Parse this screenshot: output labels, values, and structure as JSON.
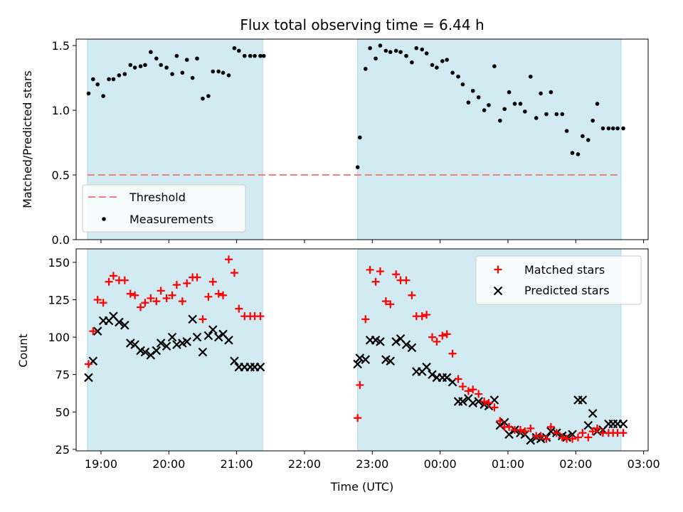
{
  "title": "Flux total observing time = 6.44 h",
  "colors": {
    "band_fill": "#add8e6",
    "threshold": "#f08080",
    "measurement": "#000000",
    "matched": "#ff0000",
    "predicted": "#000000"
  },
  "chart_data": [
    {
      "type": "scatter",
      "panel": "top",
      "ylabel": "Matched/Predicted stars",
      "xlim": [
        "18:38",
        "03:04"
      ],
      "ylim": [
        0,
        1.55
      ],
      "yticks": [
        "0.0",
        "0.5",
        "1.0",
        "1.5"
      ],
      "xticks": [
        "19:00",
        "20:00",
        "21:00",
        "22:00",
        "23:00",
        "00:00",
        "01:00",
        "02:00",
        "03:00"
      ],
      "shaded_intervals": [
        [
          "18:48",
          "21:23"
        ],
        [
          "22:47",
          "02:40"
        ]
      ],
      "legend": {
        "position": "lower left",
        "threshold_label": "Threshold",
        "measurements_label": "Measurements"
      },
      "threshold": {
        "value": 0.5,
        "x_range": [
          "18:48",
          "02:40"
        ]
      },
      "series": [
        {
          "name": "Measurements",
          "x": [
            "18:49",
            "18:53",
            "18:57",
            "19:02",
            "19:07",
            "19:11",
            "19:16",
            "19:21",
            "19:26",
            "19:30",
            "19:35",
            "19:39",
            "19:44",
            "19:49",
            "19:53",
            "19:58",
            "20:03",
            "20:07",
            "20:12",
            "20:16",
            "20:21",
            "20:25",
            "20:30",
            "20:35",
            "20:39",
            "20:44",
            "20:48",
            "20:53",
            "20:58",
            "21:02",
            "21:07",
            "21:12",
            "21:16",
            "21:21",
            "21:24",
            "22:47",
            "22:49",
            "22:54",
            "22:58",
            "23:03",
            "23:07",
            "23:12",
            "23:16",
            "23:21",
            "23:25",
            "23:30",
            "23:35",
            "23:39",
            "23:44",
            "23:48",
            "23:53",
            "23:57",
            "00:02",
            "00:06",
            "00:11",
            "00:16",
            "00:20",
            "00:25",
            "00:29",
            "00:34",
            "00:39",
            "00:43",
            "00:48",
            "00:53",
            "00:57",
            "01:01",
            "01:06",
            "01:11",
            "01:15",
            "01:20",
            "01:25",
            "01:29",
            "01:34",
            "01:38",
            "01:43",
            "01:48",
            "01:52",
            "01:57",
            "02:02",
            "02:06",
            "02:11",
            "02:15",
            "02:19",
            "02:24",
            "02:29",
            "02:33",
            "02:37",
            "02:42"
          ],
          "y": [
            1.13,
            1.24,
            1.2,
            1.11,
            1.24,
            1.24,
            1.27,
            1.28,
            1.35,
            1.33,
            1.34,
            1.35,
            1.45,
            1.4,
            1.35,
            1.33,
            1.28,
            1.42,
            1.29,
            1.39,
            1.25,
            1.4,
            1.09,
            1.11,
            1.3,
            1.3,
            1.29,
            1.27,
            1.48,
            1.46,
            1.42,
            1.42,
            1.42,
            1.42,
            1.42,
            0.56,
            0.79,
            1.32,
            1.48,
            1.4,
            1.5,
            1.46,
            1.45,
            1.46,
            1.45,
            1.42,
            1.37,
            1.48,
            1.47,
            1.44,
            1.35,
            1.33,
            1.38,
            1.39,
            1.29,
            1.26,
            1.2,
            1.06,
            1.15,
            1.1,
            1.0,
            1.04,
            1.34,
            0.92,
            1.01,
            1.14,
            1.05,
            1.05,
            0.99,
            1.26,
            0.94,
            1.13,
            0.97,
            1.14,
            0.97,
            0.97,
            0.84,
            0.67,
            0.66,
            0.8,
            0.77,
            0.92,
            1.05,
            0.86,
            0.86,
            0.86,
            0.86,
            0.86
          ]
        }
      ]
    },
    {
      "type": "scatter",
      "panel": "bottom",
      "xlabel": "Time (UTC)",
      "ylabel": "Count",
      "xlim": [
        "18:38",
        "03:04"
      ],
      "ylim": [
        24,
        159
      ],
      "yticks": [
        "25",
        "50",
        "75",
        "100",
        "125",
        "150"
      ],
      "xticks": [
        "19:00",
        "20:00",
        "21:00",
        "22:00",
        "23:00",
        "00:00",
        "01:00",
        "02:00",
        "03:00"
      ],
      "shaded_intervals": [
        [
          "18:48",
          "21:23"
        ],
        [
          "22:47",
          "02:40"
        ]
      ],
      "legend": {
        "position": "upper right",
        "matched_label": "Matched stars",
        "predicted_label": "Predicted stars"
      },
      "series": [
        {
          "name": "Matched stars",
          "marker": "plus",
          "x": [
            "18:49",
            "18:53",
            "18:57",
            "19:02",
            "19:07",
            "19:11",
            "19:16",
            "19:21",
            "19:26",
            "19:30",
            "19:35",
            "19:39",
            "19:44",
            "19:49",
            "19:53",
            "19:58",
            "20:03",
            "20:07",
            "20:12",
            "20:16",
            "20:21",
            "20:25",
            "20:30",
            "20:35",
            "20:39",
            "20:44",
            "20:48",
            "20:53",
            "20:58",
            "21:02",
            "21:07",
            "21:12",
            "21:16",
            "21:21",
            "22:47",
            "22:49",
            "22:54",
            "22:58",
            "23:03",
            "23:07",
            "23:12",
            "23:16",
            "23:21",
            "23:25",
            "23:30",
            "23:35",
            "23:39",
            "23:44",
            "23:48",
            "23:53",
            "23:57",
            "00:02",
            "00:06",
            "00:11",
            "00:16",
            "00:20",
            "00:25",
            "00:29",
            "00:34",
            "00:39",
            "00:43",
            "00:48",
            "00:53",
            "00:57",
            "01:01",
            "01:06",
            "01:11",
            "01:15",
            "01:20",
            "01:25",
            "01:29",
            "01:34",
            "01:38",
            "01:43",
            "01:48",
            "01:52",
            "01:57",
            "02:02",
            "02:06",
            "02:11",
            "02:15",
            "02:19",
            "02:24",
            "02:29",
            "02:33",
            "02:37",
            "02:42"
          ],
          "y": [
            82,
            104,
            125,
            123,
            137,
            141,
            138,
            138,
            129,
            128,
            120,
            123,
            126,
            124,
            131,
            126,
            128,
            135,
            124,
            136,
            140,
            140,
            112,
            127,
            137,
            129,
            128,
            152,
            143,
            119,
            114,
            114,
            114,
            114,
            46,
            68,
            112,
            145,
            137,
            144,
            124,
            122,
            142,
            138,
            138,
            128,
            114,
            114,
            115,
            100,
            97,
            101,
            102,
            89,
            72,
            67,
            64,
            65,
            62,
            57,
            56,
            53,
            44,
            40,
            40,
            38,
            38,
            37,
            39,
            34,
            34,
            32,
            40,
            36,
            33,
            32,
            32,
            33,
            36,
            33,
            37,
            39,
            36,
            36,
            36,
            36,
            36
          ]
        },
        {
          "name": "Predicted stars",
          "marker": "x",
          "x": [
            "18:49",
            "18:53",
            "18:57",
            "19:02",
            "19:07",
            "19:11",
            "19:16",
            "19:21",
            "19:26",
            "19:30",
            "19:35",
            "19:39",
            "19:44",
            "19:49",
            "19:53",
            "19:58",
            "20:03",
            "20:07",
            "20:12",
            "20:16",
            "20:21",
            "20:25",
            "20:30",
            "20:35",
            "20:39",
            "20:44",
            "20:48",
            "20:53",
            "20:58",
            "21:02",
            "21:07",
            "21:12",
            "21:16",
            "21:21",
            "22:47",
            "22:49",
            "22:54",
            "22:58",
            "23:03",
            "23:07",
            "23:12",
            "23:16",
            "23:21",
            "23:25",
            "23:30",
            "23:35",
            "23:39",
            "23:44",
            "23:48",
            "23:53",
            "23:57",
            "00:02",
            "00:06",
            "00:11",
            "00:16",
            "00:20",
            "00:25",
            "00:29",
            "00:34",
            "00:39",
            "00:43",
            "00:48",
            "00:53",
            "00:57",
            "01:01",
            "01:06",
            "01:11",
            "01:15",
            "01:20",
            "01:25",
            "01:29",
            "01:34",
            "01:38",
            "01:43",
            "01:48",
            "01:52",
            "01:57",
            "02:02",
            "02:06",
            "02:11",
            "02:15",
            "02:19",
            "02:24",
            "02:29",
            "02:33",
            "02:37",
            "02:42"
          ],
          "y": [
            73,
            84,
            104,
            111,
            111,
            114,
            110,
            108,
            96,
            95,
            91,
            90,
            88,
            91,
            96,
            94,
            100,
            95,
            96,
            97,
            112,
            100,
            90,
            101,
            105,
            100,
            102,
            98,
            84,
            80,
            80,
            80,
            80,
            80,
            82,
            86,
            85,
            98,
            98,
            97,
            85,
            84,
            97,
            99,
            95,
            93,
            77,
            77,
            80,
            75,
            73,
            73,
            73,
            70,
            57,
            57,
            59,
            56,
            57,
            55,
            54,
            58,
            41,
            43,
            35,
            38,
            36,
            35,
            31,
            33,
            32,
            33,
            37,
            36,
            34,
            33,
            35,
            58,
            58,
            41,
            49,
            37,
            38,
            42,
            42,
            42,
            42
          ]
        }
      ]
    }
  ]
}
